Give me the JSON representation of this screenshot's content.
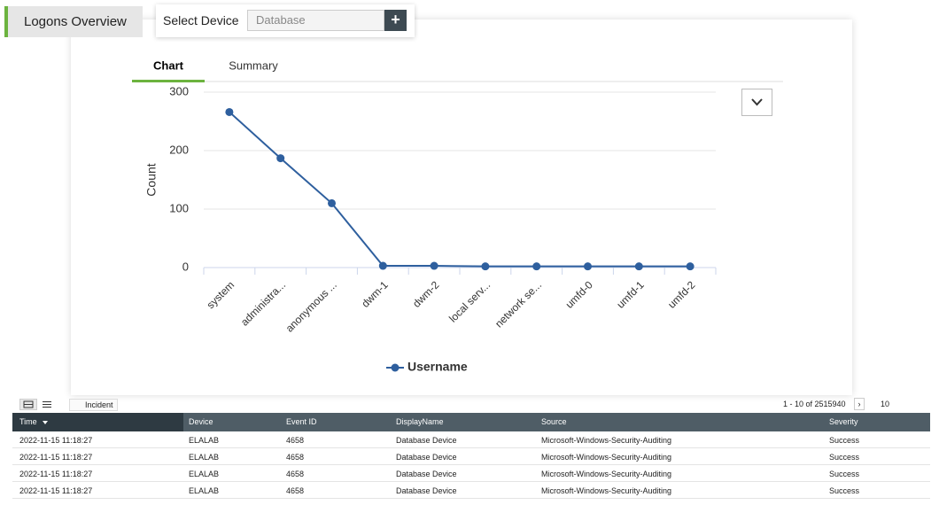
{
  "header": {
    "title": "Logons Overview",
    "device_label": "Select Device",
    "device_placeholder": "Database"
  },
  "tabs": [
    "Chart",
    "Summary"
  ],
  "chart_data": {
    "type": "line",
    "y_label": "Count",
    "categories": [
      "system",
      "administra...",
      "anonymous ...",
      "dwm-1",
      "dwm-2",
      "local serv...",
      "network se...",
      "umfd-0",
      "umfd-1",
      "umfd-2"
    ],
    "series": [
      {
        "name": "Username",
        "color": "#2e5f9e",
        "values": [
          266,
          187,
          110,
          3,
          3,
          2,
          2,
          2,
          2,
          2
        ]
      }
    ],
    "ylim": [
      0,
      300
    ],
    "yticks": [
      0,
      100,
      200,
      300
    ],
    "grid": true
  },
  "table": {
    "toolbar": {
      "button": "Incident",
      "pagination": "1 - 10 of 2515940",
      "page_size": "10"
    },
    "columns": [
      "Time",
      "Device",
      "Event ID",
      "DisplayName",
      "Source",
      "Severity"
    ],
    "rows": [
      [
        "2022-11-15 11:18:27",
        "ELALAB",
        "4658",
        "Database Device",
        "Microsoft-Windows-Security-Auditing",
        "Success"
      ],
      [
        "2022-11-15 11:18:27",
        "ELALAB",
        "4658",
        "Database Device",
        "Microsoft-Windows-Security-Auditing",
        "Success"
      ],
      [
        "2022-11-15 11:18:27",
        "ELALAB",
        "4658",
        "Database Device",
        "Microsoft-Windows-Security-Auditing",
        "Success"
      ],
      [
        "2022-11-15 11:18:27",
        "ELALAB",
        "4658",
        "Database Device",
        "Microsoft-Windows-Security-Auditing",
        "Success"
      ]
    ]
  }
}
